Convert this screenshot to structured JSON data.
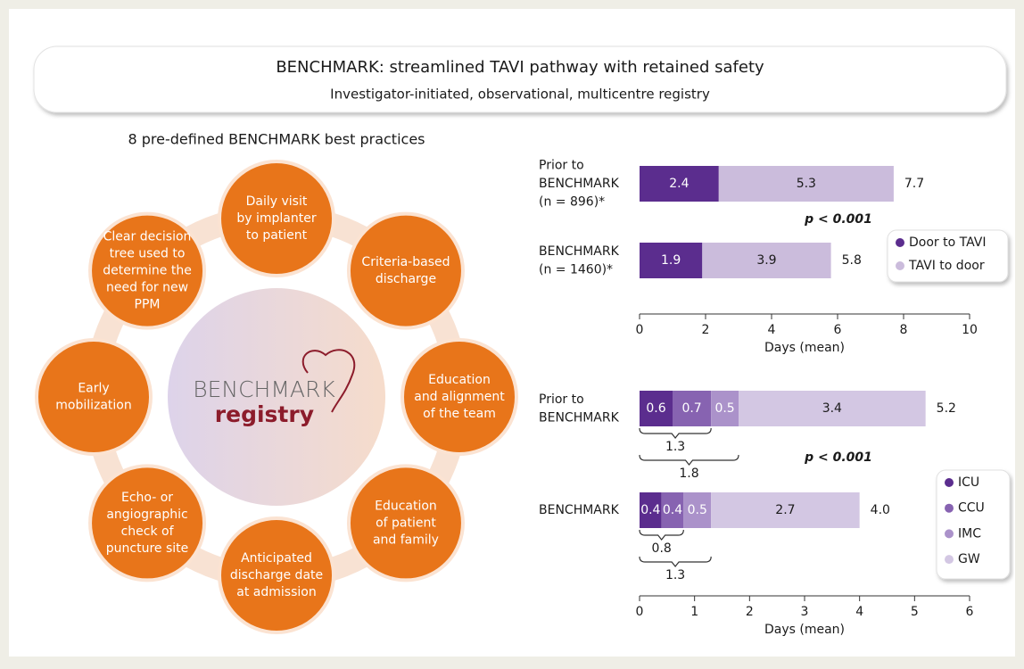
{
  "header": {
    "title": "BENCHMARK: streamlined TAVI pathway with retained safety",
    "subtitle": "Investigator-initiated, observational, multicentre registry"
  },
  "best_practices": {
    "title": "8 pre-defined BENCHMARK best practices",
    "logo": {
      "word": "BENCHMARK",
      "sub": "registry"
    },
    "items": [
      [
        "Daily visit",
        "by implanter",
        "to patient"
      ],
      [
        "Criteria-based",
        "discharge"
      ],
      [
        "Education",
        "and alignment",
        "of the team"
      ],
      [
        "Education",
        "of patient",
        "and family"
      ],
      [
        "Anticipated",
        "discharge date",
        "at admission"
      ],
      [
        "Echo- or",
        "angiographic",
        "check of",
        "puncture site"
      ],
      [
        "Early",
        "mobilization"
      ],
      [
        "Clear decision",
        "tree used to",
        "determine the",
        "need for new",
        "PPM"
      ]
    ]
  },
  "chart_data": [
    {
      "type": "stacked_barh",
      "categories": [
        [
          "Prior to",
          "BENCHMARK",
          "(n = 896)*"
        ],
        [
          "BENCHMARK",
          "(n = 1460)*"
        ]
      ],
      "series": [
        {
          "name": "Door to TAVI",
          "color": "#5b2d8e",
          "label_color": "#ffffff",
          "values": [
            2.4,
            1.9
          ]
        },
        {
          "name": "TAVI to door",
          "color": "#cbbcdc",
          "label_color": "#1a1a1a",
          "values": [
            5.3,
            3.9
          ]
        }
      ],
      "totals": [
        7.7,
        5.8
      ],
      "annotation": "p < 0.001",
      "xlabel": "Days (mean)",
      "xlim": [
        0,
        10
      ],
      "xticks": [
        0,
        2,
        4,
        6,
        8,
        10
      ],
      "legend": "right"
    },
    {
      "type": "stacked_barh",
      "categories": [
        [
          "Prior to",
          "BENCHMARK"
        ],
        [
          "BENCHMARK"
        ]
      ],
      "series": [
        {
          "name": "ICU",
          "color": "#5b2d8e",
          "label_color": "#ffffff",
          "values": [
            0.6,
            0.4
          ]
        },
        {
          "name": "CCU",
          "color": "#8763b1",
          "label_color": "#ffffff",
          "values": [
            0.7,
            0.4
          ]
        },
        {
          "name": "IMC",
          "color": "#ab92ca",
          "label_color": "#ffffff",
          "values": [
            0.5,
            0.5
          ]
        },
        {
          "name": "GW",
          "color": "#d3c7e3",
          "label_color": "#1a1a1a",
          "values": [
            3.4,
            2.7
          ]
        }
      ],
      "totals": [
        5.2,
        4.0
      ],
      "totals_labels": [
        "5.2",
        "4.0"
      ],
      "brackets": [
        [
          1.3,
          1.8
        ],
        [
          0.8,
          1.3
        ]
      ],
      "annotation": "p < 0.001",
      "xlabel": "Days (mean)",
      "xlim": [
        0,
        6
      ],
      "xticks": [
        0,
        1,
        2,
        3,
        4,
        5,
        6
      ],
      "legend": "right"
    }
  ]
}
